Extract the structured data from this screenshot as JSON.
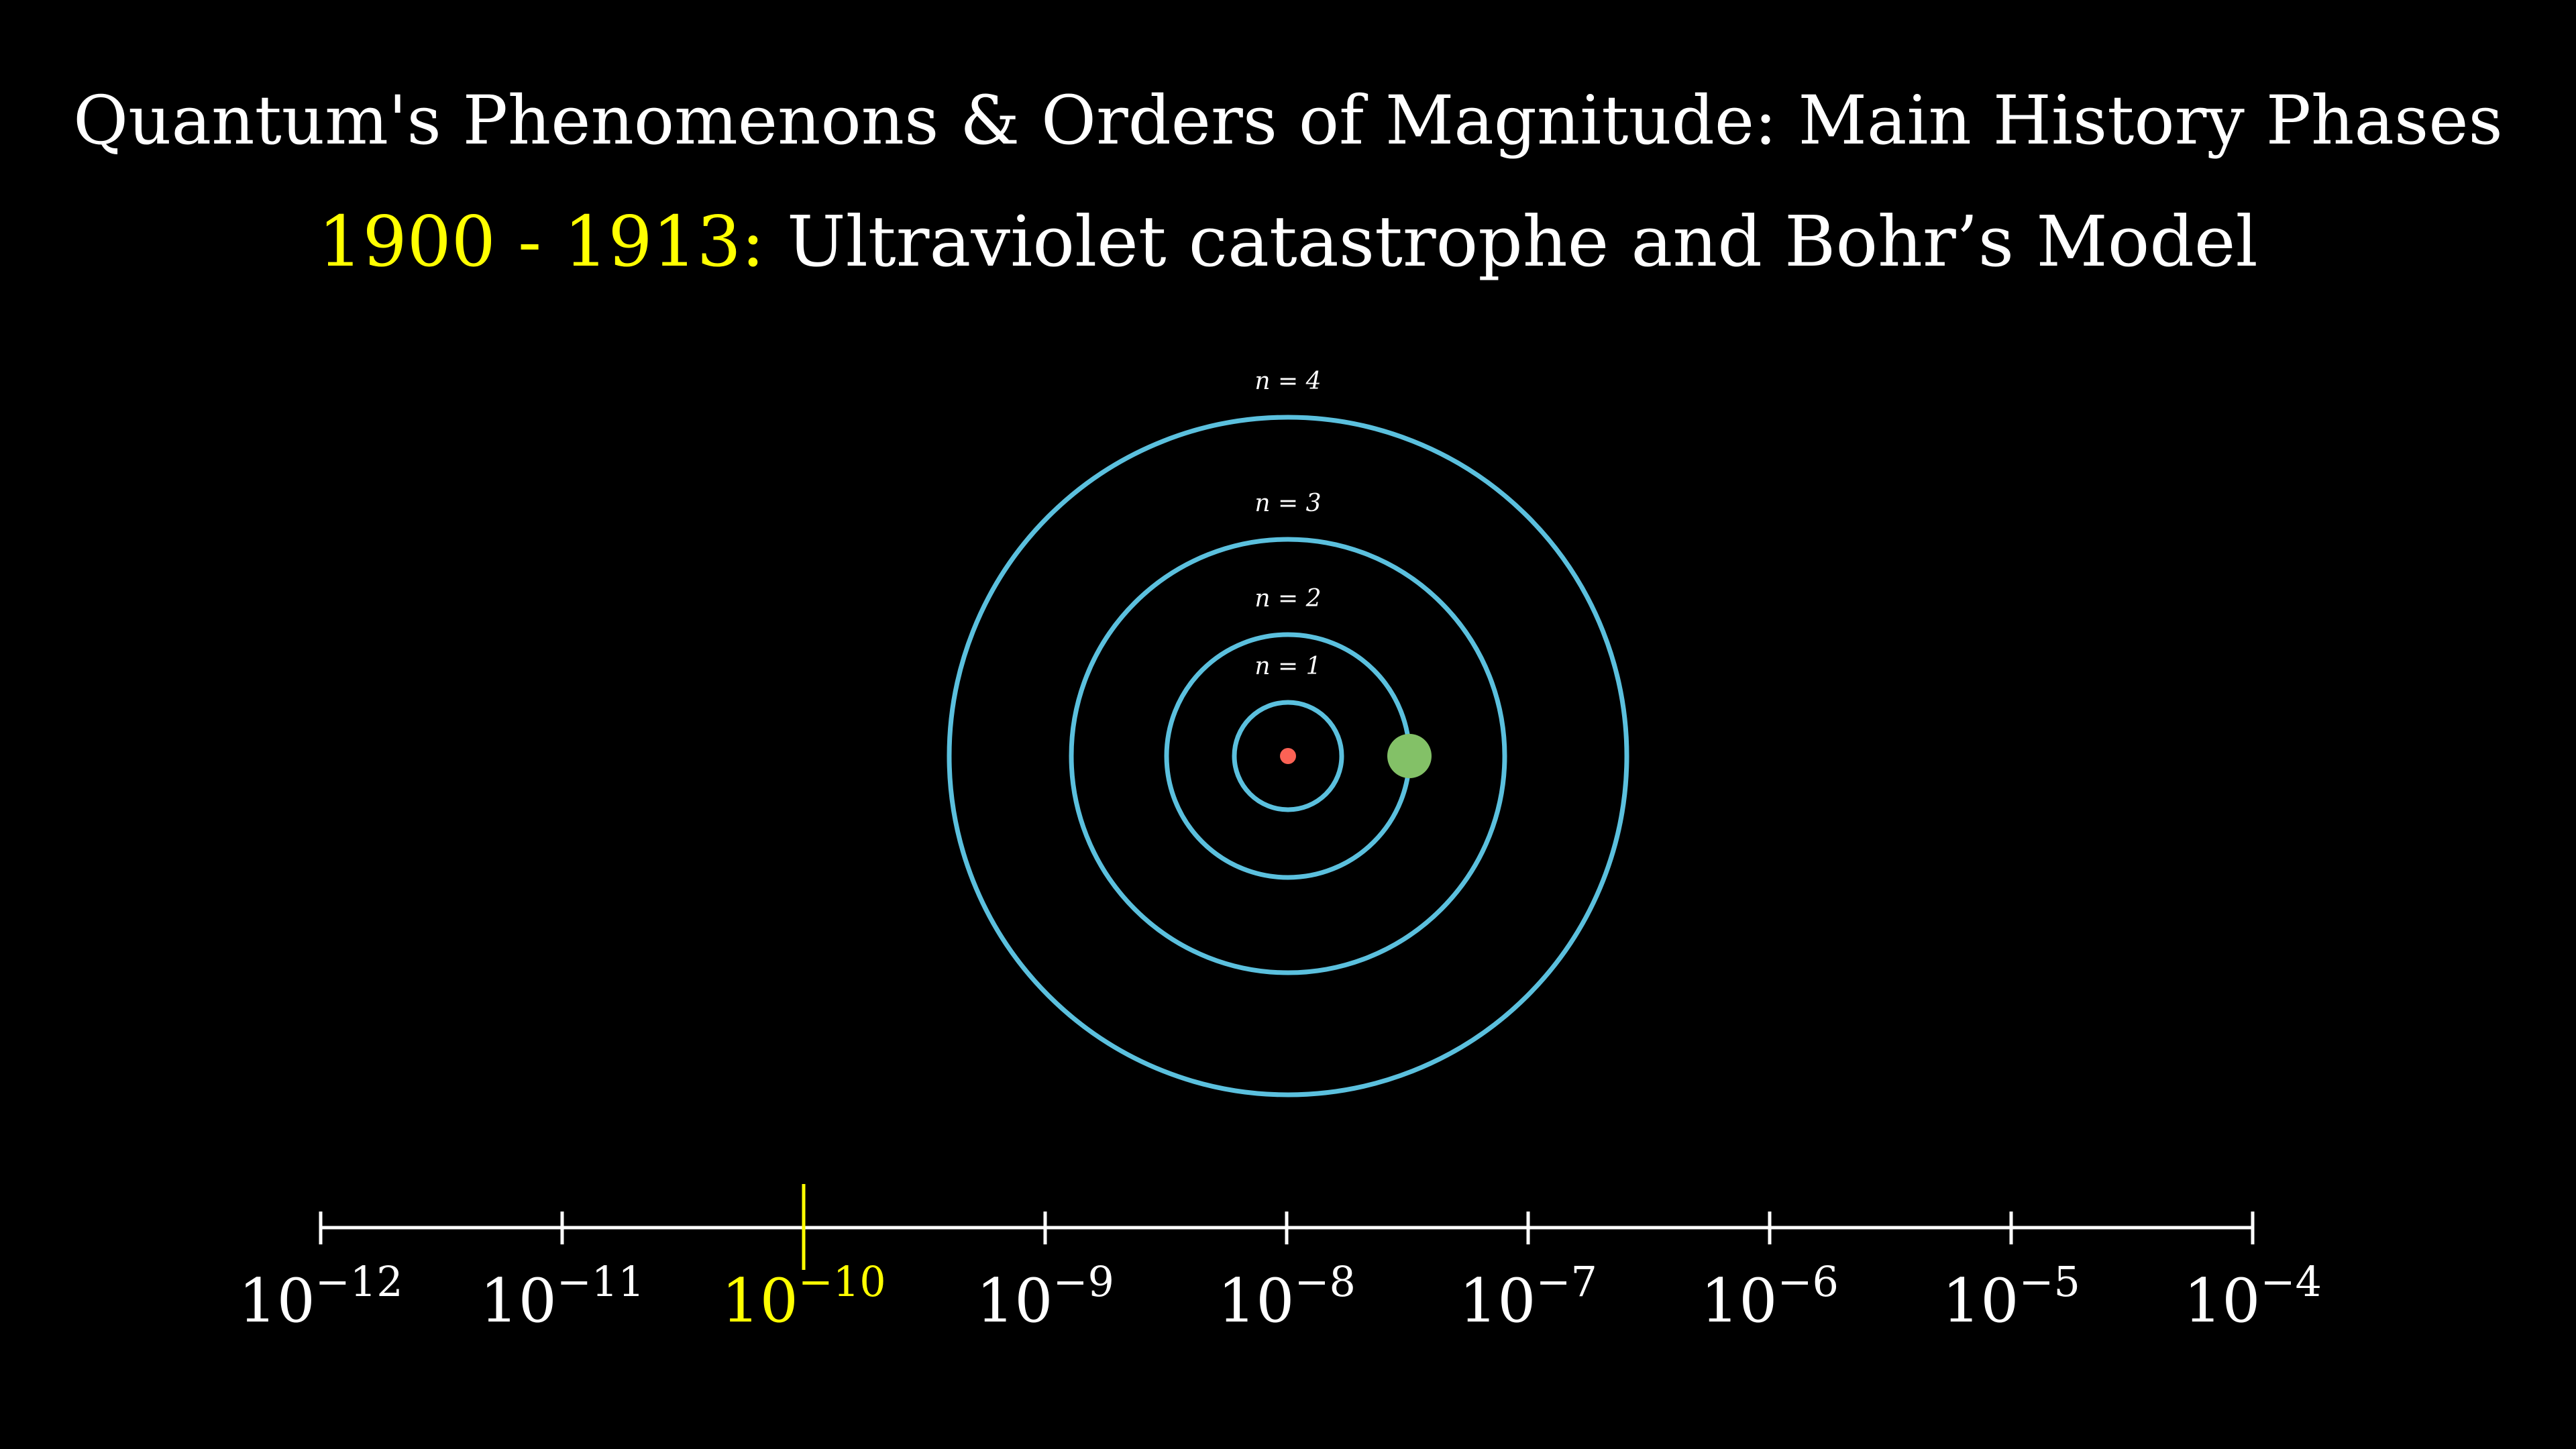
{
  "header": {
    "title": "Quantum's Phenomenons & Orders of Magnitude: Main History Phases",
    "subtitle_years": "1900 - 1913:",
    "subtitle_topic": "Ultraviolet catastrophe and Bohr’s Model"
  },
  "atom_model": {
    "orbits": [
      {
        "n": 1,
        "label": "n = 1"
      },
      {
        "n": 2,
        "label": "n = 2"
      },
      {
        "n": 3,
        "label": "n = 3"
      },
      {
        "n": 4,
        "label": "n = 4"
      }
    ],
    "electron_orbit_n": 2,
    "colors": {
      "orbit": "#5bc0de",
      "nucleus": "#fc6255",
      "electron": "#83c167"
    }
  },
  "scale": {
    "base": "10",
    "exponents": [
      "−12",
      "−11",
      "−10",
      "−9",
      "−8",
      "−7",
      "−6",
      "−5",
      "−4"
    ],
    "highlighted_exponent": "−10",
    "colors": {
      "axis": "#ffffff",
      "highlight": "#ffff00"
    }
  }
}
